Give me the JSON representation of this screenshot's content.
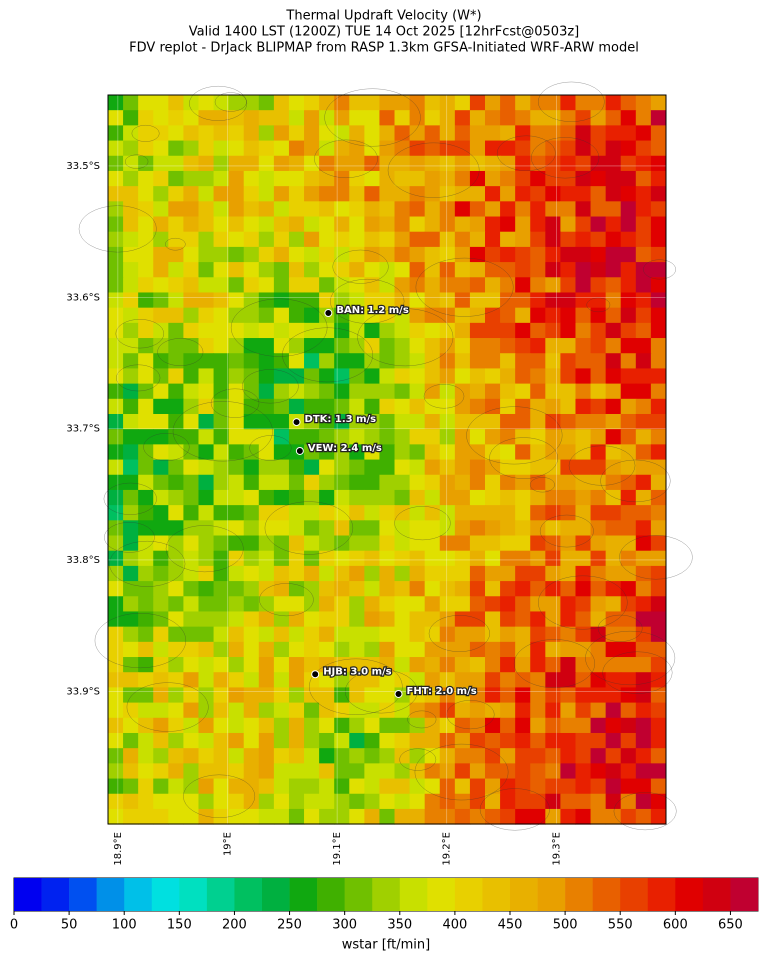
{
  "title": [
    "Thermal Updraft Velocity (W*)",
    "Valid 1400 LST (1200Z) TUE 14 Oct 2025 [12hrFcst@0503z]",
    "FDV replot - DrJack BLIPMAP from RASP 1.3km GFSA-Initiated WRF-ARW model"
  ],
  "map": {
    "latlim": [
      33.446,
      34.001
    ],
    "lonlim": [
      18.891,
      19.4
    ],
    "lat_ticks": [
      {
        "value": 33.5,
        "label": "33.5°S"
      },
      {
        "value": 33.6,
        "label": "33.6°S"
      },
      {
        "value": 33.7,
        "label": "33.7°S"
      },
      {
        "value": 33.8,
        "label": "33.8°S"
      },
      {
        "value": 33.9,
        "label": "33.9°S"
      }
    ],
    "lon_ticks": [
      {
        "value": 18.9,
        "label": "18.9°E"
      },
      {
        "value": 19.0,
        "label": "19°E"
      },
      {
        "value": 19.1,
        "label": "19.1°E"
      },
      {
        "value": 19.2,
        "label": "19.2°E"
      },
      {
        "value": 19.3,
        "label": "19.3°E"
      }
    ],
    "stations": [
      {
        "label": "BAN: 1.2 m/s",
        "lon": 19.092,
        "lat": 33.612
      },
      {
        "label": "DTK: 1.3 m/s",
        "lon": 19.063,
        "lat": 33.695
      },
      {
        "label": "VEW: 2.4 m/s",
        "lon": 19.066,
        "lat": 33.717
      },
      {
        "label": "HJB: 3.0 m/s",
        "lon": 19.08,
        "lat": 33.887
      },
      {
        "label": "FHT: 2.0 m/s",
        "lon": 19.156,
        "lat": 33.902
      }
    ]
  },
  "colorbar": {
    "label": "wstar [ft/min]",
    "lim": [
      0,
      675
    ],
    "ticks": [
      0,
      50,
      100,
      150,
      200,
      250,
      300,
      350,
      400,
      450,
      500,
      550,
      600,
      650
    ],
    "colors": [
      "#0000f0",
      "#0022f0",
      "#0050f0",
      "#0090e8",
      "#00c0e8",
      "#00e0e0",
      "#00e0c0",
      "#00d090",
      "#00c060",
      "#00b040",
      "#10a810",
      "#40b000",
      "#70c000",
      "#a0d000",
      "#c8e000",
      "#e0e000",
      "#e8d000",
      "#e8c000",
      "#e8b000",
      "#e8a000",
      "#e88000",
      "#e86000",
      "#e84000",
      "#e82000",
      "#e00000",
      "#d00010",
      "#c00030"
    ]
  }
}
